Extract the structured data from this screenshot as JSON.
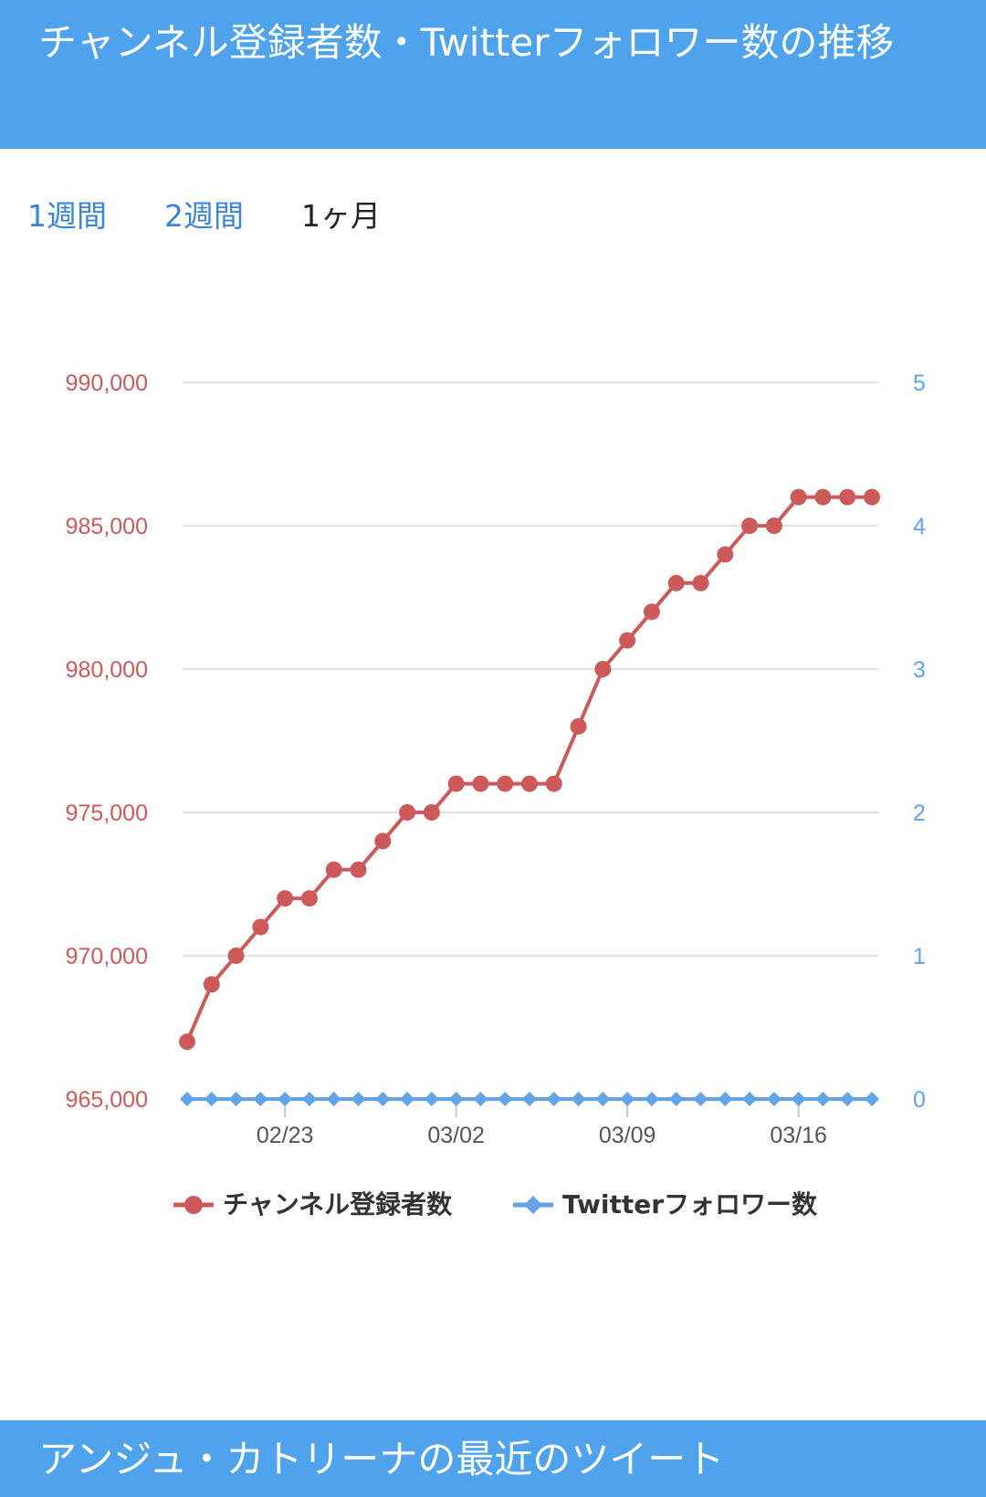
{
  "header": {
    "title": "チャンネル登録者数・Twitterフォロワー数の推移"
  },
  "tabs": [
    {
      "label": "1週間",
      "active": false
    },
    {
      "label": "2週間",
      "active": false
    },
    {
      "label": "1ヶ月",
      "active": true
    }
  ],
  "colors": {
    "header_bg": "#4ea3ec",
    "subscribers": "#cc5a5a",
    "twitter": "#64a4e6",
    "tab_link": "#3a86d4",
    "grid": "#e2e2e2"
  },
  "chart_data": {
    "type": "line",
    "x": [
      "02/19",
      "02/20",
      "02/21",
      "02/22",
      "02/23",
      "02/24",
      "02/25",
      "02/26",
      "02/27",
      "02/28",
      "03/01",
      "03/02",
      "03/03",
      "03/04",
      "03/05",
      "03/06",
      "03/07",
      "03/08",
      "03/09",
      "03/10",
      "03/11",
      "03/12",
      "03/13",
      "03/14",
      "03/15",
      "03/16",
      "03/17",
      "03/18",
      "03/19"
    ],
    "x_tick_labels": [
      "02/23",
      "03/02",
      "03/09",
      "03/16"
    ],
    "series": [
      {
        "name": "チャンネル登録者数",
        "axis": "left",
        "marker": "circle",
        "values": [
          967000,
          969000,
          970000,
          971000,
          972000,
          972000,
          973000,
          973000,
          974000,
          975000,
          975000,
          976000,
          976000,
          976000,
          976000,
          976000,
          978000,
          980000,
          981000,
          982000,
          983000,
          983000,
          984000,
          985000,
          985000,
          986000,
          986000,
          986000,
          986000
        ]
      },
      {
        "name": "Twitterフォロワー数",
        "axis": "right",
        "marker": "diamond",
        "values": [
          0,
          0,
          0,
          0,
          0,
          0,
          0,
          0,
          0,
          0,
          0,
          0,
          0,
          0,
          0,
          0,
          0,
          0,
          0,
          0,
          0,
          0,
          0,
          0,
          0,
          0,
          0,
          0,
          0
        ]
      }
    ],
    "y_left": {
      "min": 965000,
      "max": 990000,
      "ticks": [
        "965,000",
        "970,000",
        "975,000",
        "980,000",
        "985,000",
        "990,000"
      ]
    },
    "y_right": {
      "min": 0,
      "max": 5,
      "ticks": [
        "0",
        "1",
        "2",
        "3",
        "4",
        "5"
      ]
    },
    "grid": true,
    "legend_position": "bottom"
  },
  "footer": {
    "title": "アンジュ・カトリーナの最近のツイート"
  }
}
